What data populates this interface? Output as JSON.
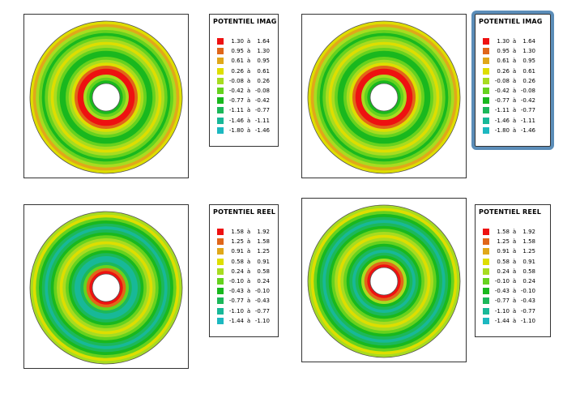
{
  "legends": {
    "imag": {
      "title": "POTENTIEL IMAG",
      "separator": "à",
      "rows": [
        {
          "lo": "1.30",
          "hi": "1.64",
          "color": "#ee1111"
        },
        {
          "lo": "0.95",
          "hi": "1.30",
          "color": "#e0661a"
        },
        {
          "lo": "0.61",
          "hi": "0.95",
          "color": "#e0a81a"
        },
        {
          "lo": "0.26",
          "hi": "0.61",
          "color": "#dede00"
        },
        {
          "lo": "-0.08",
          "hi": "0.26",
          "color": "#a8dc20"
        },
        {
          "lo": "-0.42",
          "hi": "-0.08",
          "color": "#66d21e"
        },
        {
          "lo": "-0.77",
          "hi": "-0.42",
          "color": "#19b81e"
        },
        {
          "lo": "-1.11",
          "hi": "-0.77",
          "color": "#1cb85a"
        },
        {
          "lo": "-1.46",
          "hi": "-1.11",
          "color": "#18b898"
        },
        {
          "lo": "-1.80",
          "hi": "-1.46",
          "color": "#1cb8c0"
        }
      ]
    },
    "reel": {
      "title": "POTENTIEL REEL",
      "separator": "à",
      "rows": [
        {
          "lo": "1.58",
          "hi": "1.92",
          "color": "#ee1111"
        },
        {
          "lo": "1.25",
          "hi": "1.58",
          "color": "#e0661a"
        },
        {
          "lo": "0.91",
          "hi": "1.25",
          "color": "#e0a81a"
        },
        {
          "lo": "0.58",
          "hi": "0.91",
          "color": "#dede00"
        },
        {
          "lo": "0.24",
          "hi": "0.58",
          "color": "#a8dc20"
        },
        {
          "lo": "-0.10",
          "hi": "0.24",
          "color": "#66d21e"
        },
        {
          "lo": "-0.43",
          "hi": "-0.10",
          "color": "#19b81e"
        },
        {
          "lo": "-0.77",
          "hi": "-0.43",
          "color": "#1cb85a"
        },
        {
          "lo": "-1.10",
          "hi": "-0.77",
          "color": "#18b898"
        },
        {
          "lo": "-1.44",
          "hi": "-1.10",
          "color": "#1cb8c0"
        }
      ]
    }
  },
  "contour_levels": {
    "imag_left": [
      3,
      2,
      4,
      5,
      6,
      5,
      4,
      3,
      4,
      5,
      6,
      6,
      5,
      4,
      3,
      1,
      0,
      0,
      4,
      5,
      6
    ],
    "imag_right": [
      3,
      2,
      4,
      5,
      6,
      5,
      4,
      3,
      4,
      5,
      6,
      6,
      5,
      4,
      3,
      1,
      0,
      0,
      4,
      5,
      6
    ],
    "reel_left": [
      4,
      3,
      5,
      6,
      7,
      8,
      7,
      6,
      5,
      4,
      3,
      4,
      5,
      6,
      7,
      8,
      8,
      7,
      5,
      1,
      0
    ],
    "reel_right": [
      4,
      3,
      5,
      6,
      7,
      8,
      7,
      6,
      5,
      4,
      3,
      4,
      5,
      6,
      7,
      8,
      7,
      6,
      4,
      1,
      0
    ]
  }
}
